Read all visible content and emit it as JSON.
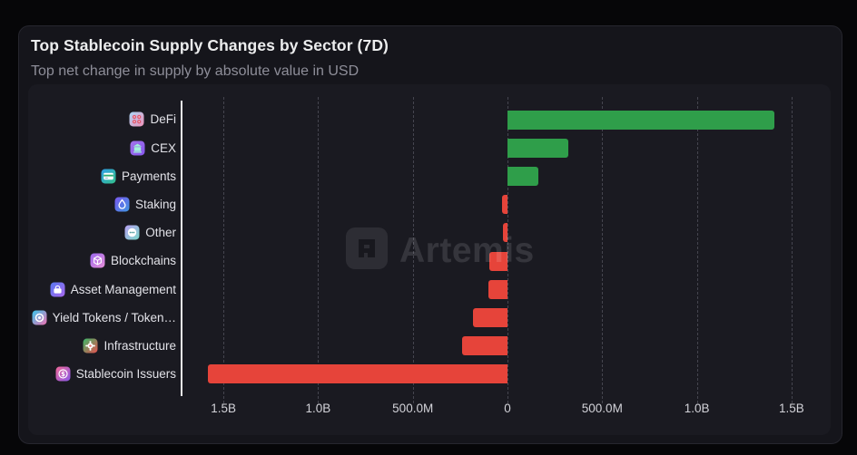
{
  "header": {
    "title": "Top Stablecoin Supply Changes by Sector (7D)",
    "subtitle": "Top net change in supply by absolute value in USD"
  },
  "watermark": {
    "text": "Artemis"
  },
  "chart_data": {
    "type": "bar",
    "orientation": "horizontal",
    "title": "Top Stablecoin Supply Changes by Sector (7D)",
    "subtitle": "Top net change in supply by absolute value in USD",
    "value_unit": "millions USD (net 7-day supply change)",
    "categories": [
      "DeFi",
      "CEX",
      "Payments",
      "Staking",
      "Other",
      "Blockchains",
      "Asset Management",
      "Yield Tokens / Token…",
      "Infrastructure",
      "Stablecoin Issuers"
    ],
    "values": [
      1410,
      320,
      165,
      -27,
      -26,
      -95,
      -101,
      -182,
      -240,
      -1580
    ],
    "icons": [
      "defi-gears-icon",
      "cex-bank-icon",
      "payments-card-icon",
      "staking-droplet-icon",
      "other-dots-icon",
      "blockchains-cube-icon",
      "asset-management-bag-icon",
      "yield-tokens-ring-icon",
      "infrastructure-gear-icon",
      "stablecoin-issuers-coin-icon"
    ],
    "icon_gradients": {
      "defi-gears-icon": [
        "#a8d8f8",
        "#f090b8"
      ],
      "cex-bank-icon": [
        "#a374ea",
        "#8656ee"
      ],
      "payments-card-icon": [
        "#2f9fe8",
        "#34c08a"
      ],
      "staking-droplet-icon": [
        "#7a58f0",
        "#3f96e0"
      ],
      "other-dots-icon": [
        "#b8a0f2",
        "#7ad8c8"
      ],
      "blockchains-cube-icon": [
        "#9a68ee",
        "#e890d8"
      ],
      "asset-management-bag-icon": [
        "#5878f0",
        "#a868ee"
      ],
      "yield-tokens-ring-icon": [
        "#38c8ee",
        "#f070b0"
      ],
      "infrastructure-gear-icon": [
        "#38b868",
        "#e85050"
      ],
      "stablecoin-issuers-coin-icon": [
        "#f06898",
        "#8858e8"
      ]
    },
    "positive_color": "#2f9e4a",
    "negative_color": "#e6443a",
    "xticks": [
      {
        "label": "1.5B",
        "value": -1500
      },
      {
        "label": "1.0B",
        "value": -1000
      },
      {
        "label": "500.0M",
        "value": -500
      },
      {
        "label": "0",
        "value": 0
      },
      {
        "label": "500.0M",
        "value": 500
      },
      {
        "label": "1.0B",
        "value": 1000
      },
      {
        "label": "1.5B",
        "value": 1500
      }
    ],
    "xlim": [
      -1720,
      1590
    ],
    "grid": "vertical-dashed",
    "legend": "none",
    "xlabel": "",
    "ylabel": ""
  }
}
